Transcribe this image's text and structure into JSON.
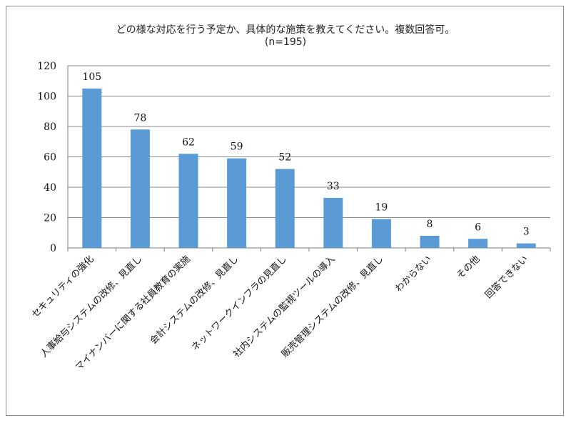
{
  "chart_data": {
    "type": "bar",
    "title": "どの様な対応を行う予定か、具体的な施策を教えてください。複数回答可。",
    "subtitle": "(n=195)",
    "categories": [
      "セキュリティの強化",
      "人事給与システムの改修、見直し",
      "マイナンバーに関する社員教育の実施",
      "会計システムの改修、見直し",
      "ネットワークインフラの見直し",
      "社内システムの監視ツールの導入",
      "販売管理システムの改修、見直し",
      "わからない",
      "その他",
      "回答できない"
    ],
    "values": [
      105,
      78,
      62,
      59,
      52,
      33,
      19,
      8,
      6,
      3
    ],
    "ylim": [
      0,
      120
    ],
    "yticks": [
      0,
      20,
      40,
      60,
      80,
      100,
      120
    ],
    "grid": true,
    "legend": "none",
    "bar_color": "#5b9bd5"
  }
}
